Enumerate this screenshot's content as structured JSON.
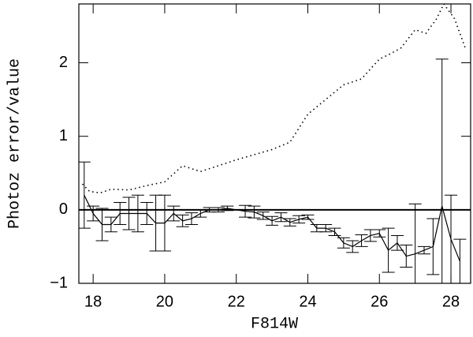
{
  "chart_data": {
    "type": "errorbar",
    "xlabel": "F814W",
    "ylabel": "Photoz error/value",
    "xlim": [
      17.6,
      28.55
    ],
    "ylim": [
      -1,
      2.8
    ],
    "xticks": [
      18,
      20,
      22,
      24,
      26,
      28
    ],
    "yticks": [
      {
        "value": -1,
        "label": "−1"
      },
      0,
      1,
      2
    ],
    "hline": 0,
    "series": [
      {
        "style": "errorbar",
        "color": "#000000",
        "x": [
          17.75,
          18.0,
          18.25,
          18.5,
          18.75,
          19.0,
          19.25,
          19.5,
          19.75,
          20.0,
          20.25,
          20.5,
          20.75,
          21.0,
          21.25,
          21.5,
          21.75,
          22.25,
          22.5,
          22.75,
          23.0,
          23.25,
          23.5,
          23.75,
          24.0,
          24.25,
          24.5,
          24.75,
          25.0,
          25.25,
          25.5,
          25.75,
          26.0,
          26.25,
          26.5,
          26.75,
          27.0,
          27.25,
          27.5,
          27.75,
          28.0,
          28.25
        ],
        "values": [
          0.2,
          -0.05,
          -0.2,
          -0.2,
          -0.05,
          -0.05,
          -0.05,
          -0.05,
          -0.18,
          -0.18,
          -0.05,
          -0.15,
          -0.12,
          -0.05,
          0.0,
          0.0,
          0.02,
          -0.02,
          -0.03,
          -0.08,
          -0.15,
          -0.1,
          -0.17,
          -0.13,
          -0.1,
          -0.25,
          -0.25,
          -0.3,
          -0.45,
          -0.5,
          -0.42,
          -0.35,
          -0.32,
          -0.55,
          -0.45,
          -0.63,
          -0.6,
          -0.55,
          -0.5,
          0.05,
          -0.4,
          -0.7
        ],
        "errors": [
          0.45,
          0.1,
          0.22,
          0.1,
          0.15,
          0.22,
          0.25,
          0.15,
          0.38,
          0.38,
          0.1,
          0.08,
          0.08,
          0.05,
          0.03,
          0.03,
          0.03,
          0.08,
          0.08,
          0.05,
          0.06,
          0.06,
          0.05,
          0.05,
          0.03,
          0.05,
          0.05,
          0.05,
          0.07,
          0.08,
          0.08,
          0.08,
          0.05,
          0.3,
          0.1,
          0.15,
          0.68,
          0.05,
          0.38,
          2.0,
          0.6,
          0.3
        ]
      },
      {
        "style": "dotted",
        "color": "#000000",
        "x": [
          17.7,
          17.9,
          18.2,
          18.5,
          19.0,
          19.5,
          20.0,
          20.5,
          21.0,
          21.5,
          22.0,
          22.5,
          23.0,
          23.5,
          24.0,
          24.5,
          25.0,
          25.5,
          26.0,
          26.3,
          26.6,
          27.0,
          27.3,
          27.6,
          27.8,
          28.1,
          28.4
        ],
        "values": [
          0.35,
          0.25,
          0.23,
          0.28,
          0.27,
          0.33,
          0.38,
          0.6,
          0.52,
          0.6,
          0.68,
          0.75,
          0.82,
          0.92,
          1.3,
          1.5,
          1.7,
          1.78,
          2.05,
          2.12,
          2.2,
          2.45,
          2.4,
          2.6,
          2.8,
          2.6,
          2.2
        ]
      }
    ]
  }
}
